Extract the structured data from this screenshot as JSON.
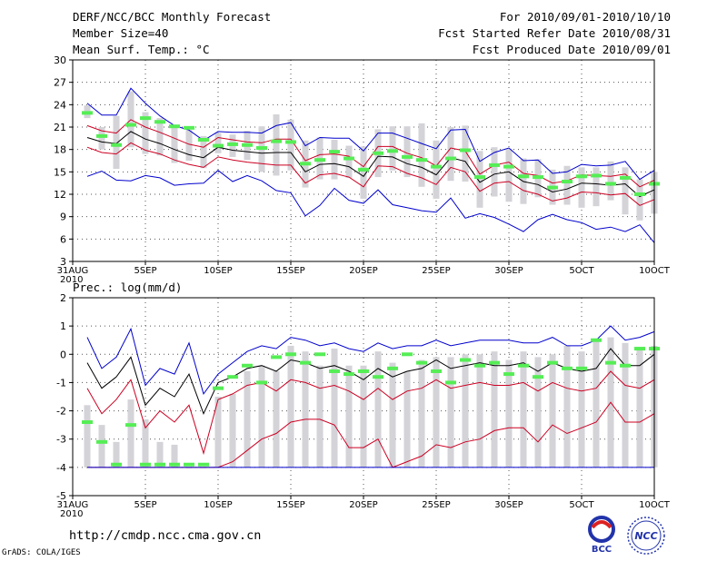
{
  "header": {
    "title": "DERF/NCC/BCC Monthly Forecast",
    "member_size": "Member Size=40",
    "variable": "Mean Surf. Temp.: °C",
    "period": "For 2010/09/01-2010/10/10",
    "fcst_started": "Fcst Started Refer Date 2010/08/31",
    "fcst_produced": "Fcst Produced Date 2010/09/01"
  },
  "precip_label": "Prec.: log(mm/d)",
  "footer": {
    "url": "http://cmdp.ncc.cma.gov.cn",
    "credit": "GrADS: COLA/IGES",
    "logo_bcc": "BCC",
    "logo_ncc": "NCC"
  },
  "colors": {
    "outer_envelope": "#0000cc",
    "inner_band": "#cc0022",
    "mean": "#000000",
    "box": "#d3d3d8",
    "marker": "#55ee55"
  },
  "chart_data": [
    {
      "type": "line",
      "title": "Mean Surf. Temp.: °C",
      "xlabel": "",
      "ylabel": "",
      "xlim": [
        0,
        40
      ],
      "ylim": [
        3,
        30
      ],
      "grid": true,
      "y_ticks": [
        3,
        6,
        9,
        12,
        15,
        18,
        21,
        24,
        27,
        30
      ],
      "x_ticks": [
        {
          "day": 0,
          "label": "31AUG",
          "sub": "2010"
        },
        {
          "day": 5,
          "label": "5SEP"
        },
        {
          "day": 10,
          "label": "10SEP"
        },
        {
          "day": 15,
          "label": "15SEP"
        },
        {
          "day": 20,
          "label": "20SEP"
        },
        {
          "day": 25,
          "label": "25SEP"
        },
        {
          "day": 30,
          "label": "30SEP"
        },
        {
          "day": 35,
          "label": "5OCT"
        },
        {
          "day": 40,
          "label": "10OCT"
        }
      ],
      "days": [
        1,
        2,
        3,
        4,
        5,
        6,
        7,
        8,
        9,
        10,
        11,
        12,
        13,
        14,
        15,
        16,
        17,
        18,
        19,
        20,
        21,
        22,
        23,
        24,
        25,
        26,
        27,
        28,
        29,
        30,
        31,
        32,
        33,
        34,
        35,
        36,
        37,
        38,
        39,
        40
      ],
      "series": [
        {
          "name": "max",
          "color": "#0000cc",
          "values": [
            24.2,
            22.6,
            22.6,
            26.2,
            24.2,
            22.5,
            21.2,
            20.6,
            19.2,
            20.4,
            20.3,
            20.3,
            20.2,
            21.2,
            21.6,
            18.5,
            19.6,
            19.5,
            19.5,
            17.8,
            20.2,
            20.2,
            19.5,
            18.8,
            18.1,
            20.6,
            20.7,
            16.4,
            17.6,
            18.2,
            16.5,
            16.6,
            14.8,
            15.0,
            16.0,
            15.8,
            15.9,
            16.4,
            14.0,
            15.2
          ]
        },
        {
          "name": "upper",
          "color": "#cc0022",
          "values": [
            21.2,
            20.5,
            20.2,
            22.0,
            21.0,
            20.3,
            19.5,
            18.7,
            18.3,
            19.6,
            19.3,
            19.0,
            18.9,
            19.4,
            19.4,
            16.5,
            17.3,
            17.4,
            17.1,
            15.7,
            18.4,
            18.4,
            17.5,
            16.9,
            15.8,
            18.2,
            17.8,
            14.7,
            15.9,
            16.3,
            14.8,
            14.5,
            13.5,
            13.8,
            14.6,
            14.5,
            14.4,
            14.7,
            13.0,
            13.9
          ]
        },
        {
          "name": "mean",
          "color": "#000000",
          "values": [
            19.6,
            19.0,
            18.8,
            20.4,
            19.4,
            18.8,
            18.0,
            17.3,
            16.9,
            18.3,
            17.9,
            17.7,
            17.5,
            17.6,
            17.6,
            15.0,
            16.0,
            16.1,
            15.7,
            14.4,
            17.1,
            17.0,
            16.1,
            15.6,
            14.6,
            16.9,
            16.4,
            13.6,
            14.7,
            15.0,
            13.7,
            13.3,
            12.3,
            12.7,
            13.5,
            13.4,
            13.2,
            13.4,
            11.7,
            12.6
          ]
        },
        {
          "name": "lower",
          "color": "#cc0022",
          "values": [
            18.3,
            17.6,
            17.4,
            18.9,
            17.9,
            17.4,
            16.6,
            16.0,
            15.6,
            17.0,
            16.6,
            16.3,
            16.1,
            15.9,
            15.9,
            13.5,
            14.6,
            14.8,
            14.3,
            13.0,
            15.8,
            15.7,
            14.8,
            14.2,
            13.3,
            15.6,
            15.0,
            12.4,
            13.5,
            13.7,
            12.5,
            12.0,
            11.1,
            11.5,
            12.3,
            12.2,
            11.9,
            12.1,
            10.5,
            11.3
          ]
        },
        {
          "name": "min",
          "color": "#0000cc",
          "values": [
            14.4,
            15.1,
            13.9,
            13.8,
            14.5,
            14.2,
            13.2,
            13.4,
            13.5,
            15.2,
            13.7,
            14.5,
            13.8,
            12.5,
            12.2,
            9.1,
            10.5,
            12.8,
            11.2,
            10.8,
            12.6,
            10.6,
            10.2,
            9.8,
            9.6,
            11.5,
            8.8,
            9.4,
            8.9,
            8.0,
            7.0,
            8.6,
            9.3,
            8.6,
            8.2,
            7.3,
            7.6,
            7.0,
            7.9,
            5.5
          ]
        }
      ],
      "boxes": {
        "low": [
          22.2,
          18.0,
          15.4,
          18.3,
          17.4,
          17.2,
          16.2,
          16.5,
          15.5,
          17.5,
          17.0,
          16.6,
          15.0,
          14.5,
          15.2,
          12.9,
          14.0,
          14.0,
          14.2,
          11.4,
          14.3,
          15.2,
          14.3,
          13.0,
          11.4,
          13.8,
          13.7,
          10.2,
          11.7,
          11.0,
          10.7,
          11.6,
          10.6,
          10.6,
          10.2,
          10.4,
          11.2,
          9.3,
          8.5,
          9.4
        ],
        "high": [
          23.9,
          21.0,
          22.5,
          25.8,
          23.0,
          22.2,
          21.0,
          20.6,
          19.8,
          20.2,
          20.0,
          20.5,
          21.1,
          22.7,
          22.0,
          19.2,
          19.6,
          19.3,
          18.5,
          18.4,
          20.7,
          21.1,
          21.1,
          21.5,
          19.2,
          21.0,
          21.2,
          17.8,
          18.3,
          18.1,
          16.8,
          16.7,
          15.3,
          15.8,
          15.6,
          15.6,
          16.4,
          15.6,
          14.0,
          15.0
        ]
      },
      "markers": [
        22.9,
        19.8,
        18.6,
        21.3,
        22.2,
        21.7,
        21.1,
        20.9,
        19.3,
        18.5,
        18.7,
        18.6,
        18.2,
        19.1,
        19.0,
        16.1,
        16.6,
        17.7,
        16.8,
        15.3,
        17.5,
        17.8,
        17.0,
        16.6,
        15.7,
        16.8,
        17.9,
        14.3,
        15.9,
        15.7,
        14.4,
        14.3,
        12.9,
        13.7,
        14.4,
        14.5,
        13.4,
        14.2,
        12.0,
        13.4
      ]
    },
    {
      "type": "line",
      "title": "Prec.: log(mm/d)",
      "xlabel": "",
      "ylabel": "",
      "xlim": [
        0,
        40
      ],
      "ylim": [
        -5,
        2
      ],
      "grid": true,
      "y_ticks": [
        -5,
        -4,
        -3,
        -2,
        -1,
        0,
        1,
        2
      ],
      "x_ticks": [
        {
          "day": 0,
          "label": "31AUG",
          "sub": "2010"
        },
        {
          "day": 5,
          "label": "5SEP"
        },
        {
          "day": 10,
          "label": "10SEP"
        },
        {
          "day": 15,
          "label": "15SEP"
        },
        {
          "day": 20,
          "label": "20SEP"
        },
        {
          "day": 25,
          "label": "25SEP"
        },
        {
          "day": 30,
          "label": "30SEP"
        },
        {
          "day": 35,
          "label": "5OCT"
        },
        {
          "day": 40,
          "label": "10OCT"
        }
      ],
      "days": [
        1,
        2,
        3,
        4,
        5,
        6,
        7,
        8,
        9,
        10,
        11,
        12,
        13,
        14,
        15,
        16,
        17,
        18,
        19,
        20,
        21,
        22,
        23,
        24,
        25,
        26,
        27,
        28,
        29,
        30,
        31,
        32,
        33,
        34,
        35,
        36,
        37,
        38,
        39,
        40
      ],
      "series": [
        {
          "name": "max",
          "color": "#0000cc",
          "values": [
            0.6,
            -0.5,
            -0.1,
            0.9,
            -1.1,
            -0.5,
            -0.7,
            0.4,
            -1.4,
            -0.7,
            -0.3,
            0.1,
            0.3,
            0.2,
            0.6,
            0.5,
            0.3,
            0.4,
            0.2,
            0.1,
            0.4,
            0.2,
            0.3,
            0.3,
            0.5,
            0.3,
            0.4,
            0.5,
            0.5,
            0.5,
            0.4,
            0.4,
            0.6,
            0.3,
            0.3,
            0.5,
            1.0,
            0.5,
            0.6,
            0.8
          ]
        },
        {
          "name": "upper",
          "color": "#000000",
          "values": [
            -0.3,
            -1.2,
            -0.8,
            -0.1,
            -1.8,
            -1.2,
            -1.5,
            -0.7,
            -2.1,
            -1.0,
            -0.8,
            -0.5,
            -0.4,
            -0.6,
            -0.2,
            -0.3,
            -0.5,
            -0.4,
            -0.6,
            -0.9,
            -0.5,
            -0.8,
            -0.6,
            -0.5,
            -0.2,
            -0.5,
            -0.4,
            -0.3,
            -0.4,
            -0.4,
            -0.3,
            -0.6,
            -0.3,
            -0.5,
            -0.6,
            -0.5,
            0.2,
            -0.4,
            -0.4,
            0.0
          ]
        },
        {
          "name": "inner-upper",
          "color": "#cc0022",
          "values": [
            -1.2,
            -2.1,
            -1.6,
            -0.9,
            -2.6,
            -2.0,
            -2.4,
            -1.8,
            -3.5,
            -1.6,
            -1.4,
            -1.1,
            -1.0,
            -1.3,
            -0.9,
            -1.0,
            -1.2,
            -1.1,
            -1.3,
            -1.6,
            -1.2,
            -1.6,
            -1.3,
            -1.2,
            -0.9,
            -1.2,
            -1.1,
            -1.0,
            -1.1,
            -1.1,
            -1.0,
            -1.3,
            -1.0,
            -1.2,
            -1.3,
            -1.2,
            -0.6,
            -1.1,
            -1.2,
            -0.9
          ]
        },
        {
          "name": "inner-lower",
          "color": "#cc0022",
          "values": [
            -4.0,
            -4.0,
            -4.0,
            -4.0,
            -4.0,
            -4.0,
            -4.0,
            -4.0,
            -4.0,
            -4.0,
            -3.8,
            -3.4,
            -3.0,
            -2.8,
            -2.4,
            -2.3,
            -2.3,
            -2.5,
            -3.3,
            -3.3,
            -3.0,
            -4.0,
            -3.8,
            -3.6,
            -3.2,
            -3.3,
            -3.1,
            -3.0,
            -2.7,
            -2.6,
            -2.6,
            -3.1,
            -2.5,
            -2.8,
            -2.6,
            -2.4,
            -1.7,
            -2.4,
            -2.4,
            -2.1
          ]
        },
        {
          "name": "min",
          "color": "#0000cc",
          "values": [
            -4.0,
            -4.0,
            -4.0,
            -4.0,
            -4.0,
            -4.0,
            -4.0,
            -4.0,
            -4.0,
            -4.0,
            -4.0,
            -4.0,
            -4.0,
            -4.0,
            -4.0,
            -4.0,
            -4.0,
            -4.0,
            -4.0,
            -4.0,
            -4.0,
            -4.0,
            -4.0,
            -4.0,
            -4.0,
            -4.0,
            -4.0,
            -4.0,
            -4.0,
            -4.0,
            -4.0,
            -4.0,
            -4.0,
            -4.0,
            -4.0,
            -4.0,
            -4.0,
            -4.0,
            -4.0,
            -4.0
          ]
        }
      ],
      "boxes": {
        "low": [
          -4.0,
          -4.0,
          -4.0,
          -4.0,
          -4.0,
          -4.0,
          -4.0,
          -4.0,
          -4.0,
          -4.0,
          -4.0,
          -4.0,
          -4.0,
          -4.0,
          -4.0,
          -4.0,
          -4.0,
          -4.0,
          -4.0,
          -4.0,
          -4.0,
          -4.0,
          -4.0,
          -4.0,
          -4.0,
          -4.0,
          -4.0,
          -4.0,
          -4.0,
          -4.0,
          -4.0,
          -4.0,
          -4.0,
          -4.0,
          -4.0,
          -4.0,
          -4.0,
          -4.0,
          -4.0,
          -4.0
        ],
        "high": [
          -1.8,
          -2.5,
          -3.1,
          -1.6,
          -2.3,
          -3.1,
          -3.2,
          -4.0,
          -4.0,
          -1.5,
          -1.4,
          -0.6,
          -0.4,
          -0.6,
          0.3,
          0.1,
          -0.4,
          0.2,
          -0.4,
          -0.4,
          0.1,
          -0.3,
          -0.6,
          -0.2,
          -0.1,
          -0.1,
          0.0,
          0.0,
          0.1,
          -0.2,
          0.1,
          -0.1,
          0.0,
          0.3,
          0.1,
          0.5,
          0.6,
          0.4,
          0.2,
          0.3
        ]
      },
      "markers": [
        -2.4,
        -3.1,
        -3.9,
        -2.5,
        -3.9,
        -3.9,
        -3.9,
        -3.9,
        -3.9,
        -1.2,
        -0.8,
        -0.4,
        -1.0,
        -0.1,
        0.0,
        -0.3,
        0.0,
        -0.6,
        -0.7,
        -0.6,
        -0.8,
        -0.5,
        0.0,
        -0.3,
        -0.6,
        -1.0,
        -0.2,
        -0.4,
        -0.3,
        -0.7,
        -0.4,
        -0.8,
        -0.3,
        -0.5,
        -0.5,
        0.5,
        -0.3,
        -0.4,
        0.2,
        0.2
      ]
    }
  ]
}
